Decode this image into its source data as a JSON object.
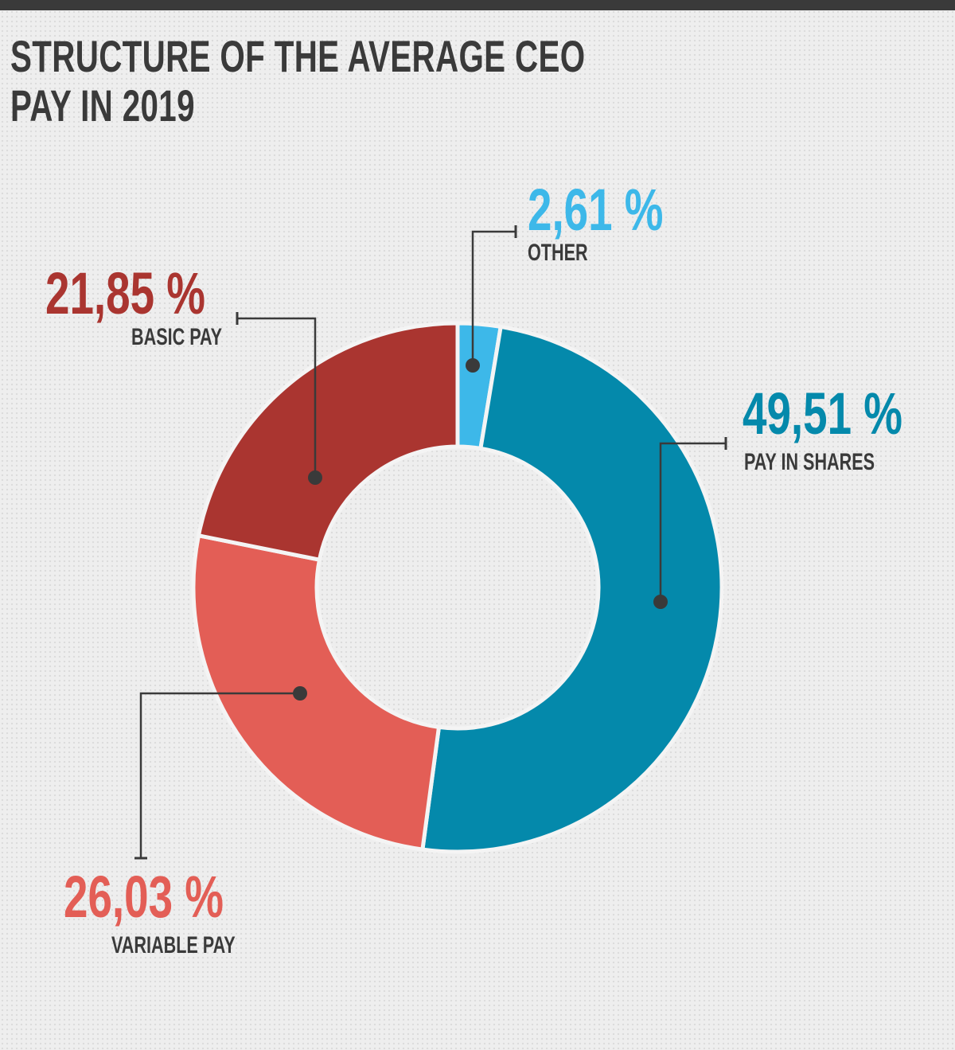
{
  "title_lines": [
    "STRUCTURE OF THE AVERAGE CEO",
    "PAY IN 2019"
  ],
  "chart_data": {
    "type": "pie",
    "title": "STRUCTURE OF THE AVERAGE CEO PAY IN 2019",
    "slices": [
      {
        "label": "OTHER",
        "value": 2.61,
        "display": "2,61 %",
        "color": "#3db8e9"
      },
      {
        "label": "PAY IN SHARES",
        "value": 49.51,
        "display": "49,51 %",
        "color": "#0489ab"
      },
      {
        "label": "VARIABLE PAY",
        "value": 26.03,
        "display": "26,03 %",
        "color": "#e35e56"
      },
      {
        "label": "BASIC PAY",
        "value": 21.85,
        "display": "21,85 %",
        "color": "#aa3530"
      }
    ],
    "hole": true,
    "legend": "none",
    "grid": false
  },
  "colors": {
    "background": "#eeeeee",
    "text": "#3a3a3a",
    "top_bar": "#3a3a3a"
  }
}
